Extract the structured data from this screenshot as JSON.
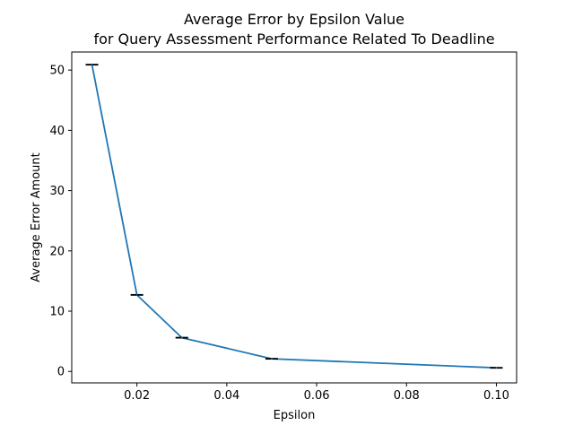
{
  "chart_data": {
    "type": "line",
    "title_line1": "Average Error by Epsilon Value",
    "title_line2": "for Query Assessment Performance Related To Deadline",
    "xlabel": "Epsilon",
    "ylabel": "Average Error Amount",
    "x": [
      0.01,
      0.02,
      0.03,
      0.05,
      0.1
    ],
    "series": [
      {
        "values": [
          50.9,
          12.7,
          5.6,
          2.1,
          0.6
        ],
        "error": [
          0.05,
          0.05,
          0.05,
          0.05,
          0.05
        ],
        "color": "#1f77b4"
      }
    ],
    "error_bar_color": "#000000",
    "xlim": [
      0.0055,
      0.1045
    ],
    "ylim": [
      -1.9,
      53.0
    ],
    "xticks": [
      0.02,
      0.04,
      0.06,
      0.08,
      0.1
    ],
    "xtick_labels": [
      "0.02",
      "0.04",
      "0.06",
      "0.08",
      "0.10"
    ],
    "yticks": [
      0,
      10,
      20,
      30,
      40,
      50
    ],
    "ytick_labels": [
      "0",
      "10",
      "20",
      "30",
      "40",
      "50"
    ],
    "grid": false,
    "legend": false
  }
}
